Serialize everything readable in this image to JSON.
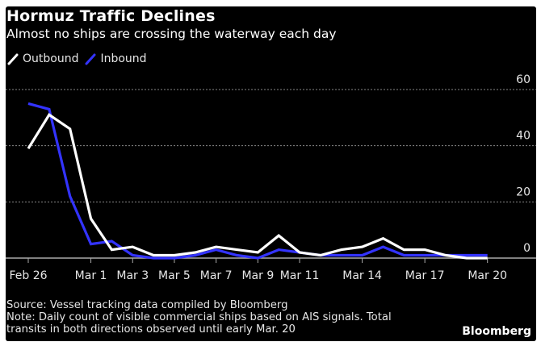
{
  "header": {
    "title": "Hormuz Traffic Declines",
    "subtitle": "Almost no ships are crossing the waterway each day"
  },
  "legend": [
    {
      "label": "Outbound",
      "color": "#ffffff"
    },
    {
      "label": "Inbound",
      "color": "#3333ff"
    }
  ],
  "footer": {
    "source": "Source: Vessel tracking data compiled by Bloomberg",
    "note_line1": "Note: Daily count of visible commercial ships based on AIS signals. Total",
    "note_line2": "transits in both directions observed until early Mar. 20",
    "brand": "Bloomberg"
  },
  "chart_data": {
    "type": "line",
    "title": "Hormuz Traffic Declines",
    "subtitle": "Almost no ships are crossing the waterway each day",
    "xlabel": "",
    "ylabel": "",
    "x": [
      "Feb 26",
      "Feb 27",
      "Feb 28",
      "Mar 1",
      "Mar 2",
      "Mar 3",
      "Mar 4",
      "Mar 5",
      "Mar 6",
      "Mar 7",
      "Mar 8",
      "Mar 9",
      "Mar 10",
      "Mar 11",
      "Mar 12",
      "Mar 13",
      "Mar 14",
      "Mar 15",
      "Mar 16",
      "Mar 17",
      "Mar 18",
      "Mar 19",
      "Mar 20"
    ],
    "x_ticks": [
      {
        "label": "Feb 26",
        "index": 0
      },
      {
        "label": "Mar 1",
        "index": 3
      },
      {
        "label": "Mar 3",
        "index": 5
      },
      {
        "label": "Mar 5",
        "index": 7
      },
      {
        "label": "Mar 7",
        "index": 9
      },
      {
        "label": "Mar 9",
        "index": 11
      },
      {
        "label": "Mar 11",
        "index": 13
      },
      {
        "label": "Mar 14",
        "index": 16
      },
      {
        "label": "Mar 17",
        "index": 19
      },
      {
        "label": "Mar 20",
        "index": 22
      }
    ],
    "y_ticks": [
      0,
      20,
      40,
      60
    ],
    "ylim": [
      0,
      60
    ],
    "grid": true,
    "y_axis_side": "right",
    "legend_position": "top-left",
    "series": [
      {
        "name": "Outbound",
        "color": "#ffffff",
        "values": [
          39,
          51,
          46,
          14,
          3,
          4,
          1,
          1,
          2,
          4,
          3,
          2,
          8,
          2,
          1,
          3,
          4,
          7,
          3,
          3,
          1,
          0,
          0
        ]
      },
      {
        "name": "Inbound",
        "color": "#3333ff",
        "values": [
          55,
          53,
          22,
          5,
          6,
          1,
          0,
          0,
          1,
          3,
          1,
          0,
          3,
          2,
          1,
          1,
          1,
          4,
          1,
          1,
          1,
          1,
          1
        ]
      }
    ]
  }
}
